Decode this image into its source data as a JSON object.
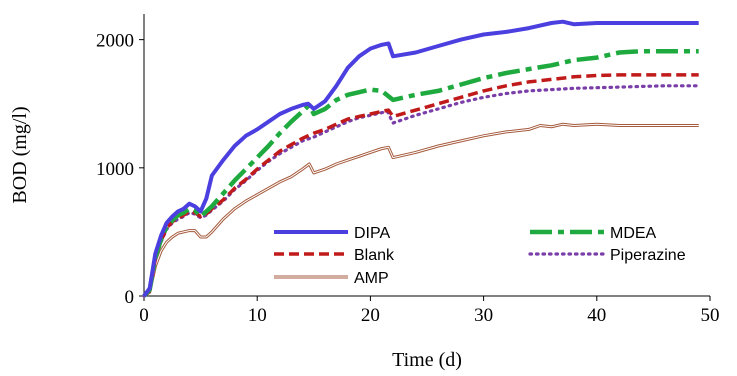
{
  "chart_data": {
    "type": "line",
    "xlabel": "Time (d)",
    "ylabel": "BOD  (mg/l)",
    "xlim": [
      0,
      50
    ],
    "ylim": [
      0,
      2200
    ],
    "x_ticks": [
      "0",
      "10",
      "20",
      "30",
      "40",
      "50"
    ],
    "y_ticks": [
      "0",
      "1000",
      "2000"
    ],
    "x_tick_values": [
      0,
      10,
      20,
      30,
      40,
      50
    ],
    "y_tick_values": [
      0,
      1000,
      2000
    ],
    "grid": false,
    "legend_position": "bottom-right",
    "series": [
      {
        "name": "DIPA",
        "color": "#4B3FE0",
        "style": "solid-thick",
        "x": [
          0,
          0.5,
          1,
          1.5,
          2,
          2.5,
          3,
          3.5,
          4,
          4.5,
          5,
          5.5,
          6,
          7,
          8,
          9,
          10,
          11,
          12,
          13,
          14,
          14.5,
          15,
          16,
          17,
          18,
          19,
          20,
          21,
          21.6,
          22,
          24,
          26,
          28,
          30,
          32,
          34,
          36,
          37,
          38,
          40,
          42,
          44,
          46,
          49
        ],
        "y": [
          0,
          60,
          330,
          470,
          570,
          620,
          660,
          680,
          720,
          700,
          660,
          760,
          940,
          1060,
          1170,
          1250,
          1300,
          1360,
          1420,
          1460,
          1490,
          1500,
          1460,
          1520,
          1640,
          1780,
          1870,
          1930,
          1960,
          1970,
          1870,
          1900,
          1950,
          2000,
          2040,
          2060,
          2090,
          2130,
          2140,
          2120,
          2130,
          2130,
          2130,
          2130,
          2130
        ]
      },
      {
        "name": "MDEA",
        "color": "#1FAA3F",
        "style": "long-dash",
        "x": [
          0,
          0.5,
          1,
          1.5,
          2,
          2.5,
          3,
          3.5,
          4,
          4.5,
          5,
          5.5,
          6,
          7,
          8,
          9,
          10,
          11,
          12,
          13,
          14,
          14.6,
          15,
          16,
          17,
          18,
          19,
          20,
          21,
          22,
          24,
          26,
          28,
          30,
          32,
          34,
          36,
          38,
          40,
          42,
          44,
          46,
          49
        ],
        "y": [
          0,
          50,
          300,
          440,
          540,
          590,
          630,
          650,
          680,
          670,
          620,
          660,
          700,
          800,
          900,
          990,
          1080,
          1170,
          1270,
          1360,
          1440,
          1490,
          1420,
          1460,
          1530,
          1570,
          1590,
          1610,
          1600,
          1530,
          1570,
          1600,
          1650,
          1700,
          1740,
          1770,
          1800,
          1840,
          1860,
          1900,
          1910,
          1910,
          1910
        ]
      },
      {
        "name": "Blank",
        "color": "#C01A1A",
        "style": "dash",
        "x": [
          0,
          0.5,
          1,
          1.5,
          2,
          2.5,
          3,
          3.5,
          4,
          4.5,
          5,
          5.5,
          6,
          7,
          8,
          9,
          10,
          11,
          12,
          13,
          14,
          15,
          16,
          17,
          18,
          19,
          20,
          21,
          21.6,
          22,
          24,
          26,
          28,
          30,
          32,
          34,
          36,
          38,
          40,
          42,
          44,
          46,
          49
        ],
        "y": [
          0,
          40,
          290,
          430,
          530,
          580,
          610,
          630,
          660,
          650,
          620,
          640,
          680,
          750,
          840,
          910,
          990,
          1060,
          1130,
          1180,
          1230,
          1270,
          1300,
          1340,
          1380,
          1400,
          1420,
          1440,
          1450,
          1400,
          1450,
          1500,
          1550,
          1600,
          1640,
          1670,
          1690,
          1710,
          1720,
          1725,
          1725,
          1725,
          1725
        ]
      },
      {
        "name": "Piperazine",
        "color": "#7A3EA8",
        "style": "dotted",
        "x": [
          0,
          0.5,
          1,
          1.5,
          2,
          2.5,
          3,
          3.5,
          4,
          4.5,
          5,
          5.5,
          6,
          7,
          8,
          9,
          10,
          11,
          12,
          13,
          14,
          15,
          16,
          17,
          18,
          19,
          20,
          21,
          21.5,
          22,
          24,
          26,
          28,
          30,
          32,
          34,
          36,
          38,
          40,
          42,
          44,
          46,
          49
        ],
        "y": [
          0,
          40,
          280,
          420,
          520,
          570,
          600,
          620,
          650,
          640,
          610,
          630,
          670,
          740,
          830,
          900,
          980,
          1050,
          1110,
          1160,
          1210,
          1240,
          1280,
          1320,
          1360,
          1390,
          1410,
          1430,
          1440,
          1350,
          1410,
          1460,
          1510,
          1550,
          1580,
          1600,
          1610,
          1620,
          1625,
          1630,
          1635,
          1640,
          1640
        ]
      },
      {
        "name": "AMP",
        "color": "#A55A3C",
        "style": "double",
        "x": [
          0,
          0.5,
          1,
          1.5,
          2,
          2.5,
          3,
          3.5,
          4,
          4.5,
          5,
          5.5,
          6,
          7,
          8,
          9,
          10,
          11,
          12,
          13,
          14,
          14.6,
          15,
          16,
          17,
          18,
          19,
          20,
          21,
          21.6,
          22,
          24,
          26,
          28,
          30,
          32,
          34,
          35,
          36,
          37,
          38,
          40,
          42,
          44,
          46,
          49
        ],
        "y": [
          0,
          30,
          230,
          350,
          420,
          460,
          490,
          500,
          510,
          510,
          460,
          460,
          500,
          600,
          680,
          740,
          790,
          840,
          890,
          930,
          990,
          1030,
          960,
          990,
          1030,
          1060,
          1090,
          1120,
          1150,
          1160,
          1080,
          1120,
          1170,
          1210,
          1250,
          1280,
          1300,
          1330,
          1320,
          1340,
          1330,
          1340,
          1330,
          1330,
          1330,
          1330
        ]
      }
    ]
  }
}
